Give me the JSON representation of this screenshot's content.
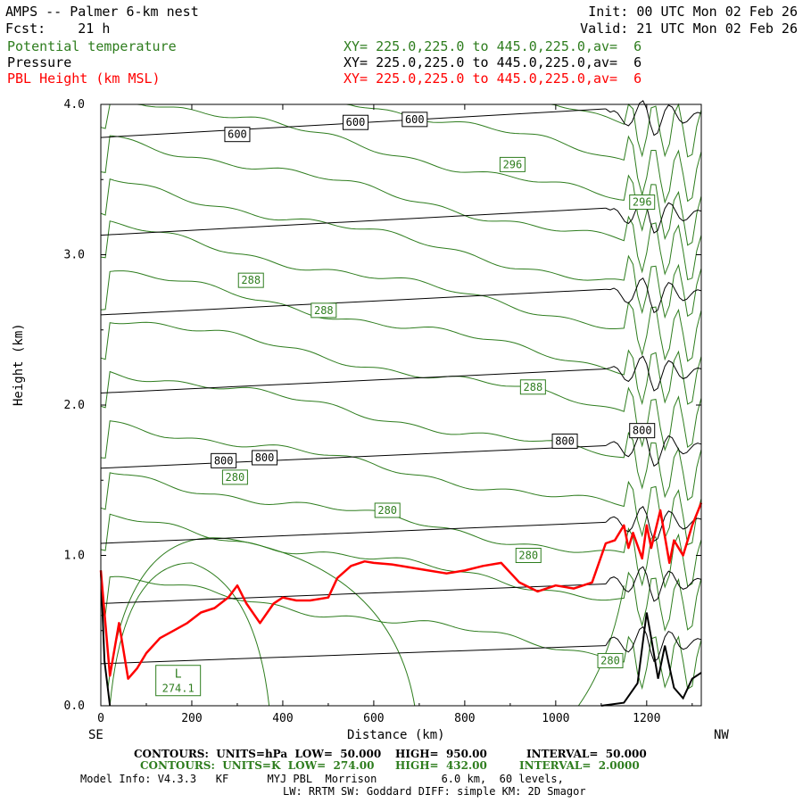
{
  "header": {
    "title": "AMPS -- Palmer 6-km nest",
    "fcst": "Fcst:    21 h",
    "init": "Init: 00 UTC Mon 02 Feb 26",
    "valid": "Valid: 21 UTC Mon 02 Feb 26",
    "field1": "Potential temperature",
    "field2": "Pressure",
    "field3": "PBL Height (km MSL)",
    "xy1": "XY= 225.0,225.0 to 445.0,225.0,av=  6",
    "xy2": "XY= 225.0,225.0 to 445.0,225.0,av=  6",
    "xy3": "XY= 225.0,225.0 to 445.0,225.0,av=  6"
  },
  "colors": {
    "theta": "#2e7d1e",
    "pressure": "#000000",
    "pbl": "#ff0000"
  },
  "footer": {
    "line1_a": "CONTOURS:  UNITS=hPa  LOW=  50.000",
    "line1_b": "HIGH=  950.00",
    "line1_c": "INTERVAL=  50.000",
    "line2_a": "CONTOURS:  UNITS=K  LOW=  274.00",
    "line2_b": "HIGH=  432.00",
    "line2_c": "INTERVAL=  2.0000",
    "line3": "Model Info: V4.3.3   KF      MYJ PBL  Morrison          6.0 km,  60 levels,",
    "line4": "LW: RRTM SW: Goddard DIFF: simple KM: 2D Smagor"
  },
  "chart_data": {
    "type": "line",
    "xlabel": "Distance (km)",
    "ylabel": "Height (km)",
    "xlim": [
      0,
      1320
    ],
    "ylim": [
      0,
      4.0
    ],
    "x_ticks": [
      "0",
      "200",
      "400",
      "600",
      "800",
      "1000",
      "1200"
    ],
    "y_ticks": [
      "0.0",
      "1.0",
      "2.0",
      "3.0",
      "4.0"
    ],
    "left_end_label": "SE",
    "right_end_label": "NW",
    "grid": false,
    "pbl_height": {
      "name": "PBL Height (km MSL)",
      "x": [
        0,
        20,
        40,
        60,
        80,
        100,
        130,
        160,
        190,
        220,
        250,
        280,
        300,
        320,
        350,
        380,
        400,
        430,
        460,
        500,
        520,
        550,
        580,
        600,
        640,
        680,
        720,
        760,
        800,
        840,
        880,
        920,
        960,
        1000,
        1040,
        1080,
        1110,
        1130,
        1150,
        1160,
        1170,
        1190,
        1200,
        1210,
        1230,
        1250,
        1260,
        1280,
        1300,
        1320
      ],
      "y": [
        0.9,
        0.2,
        0.55,
        0.18,
        0.25,
        0.35,
        0.45,
        0.5,
        0.55,
        0.62,
        0.65,
        0.72,
        0.8,
        0.68,
        0.55,
        0.68,
        0.72,
        0.7,
        0.7,
        0.72,
        0.85,
        0.93,
        0.96,
        0.95,
        0.94,
        0.92,
        0.9,
        0.88,
        0.9,
        0.93,
        0.95,
        0.82,
        0.76,
        0.8,
        0.78,
        0.82,
        1.08,
        1.1,
        1.2,
        1.05,
        1.15,
        0.98,
        1.2,
        1.05,
        1.3,
        0.95,
        1.1,
        1.0,
        1.2,
        1.35
      ]
    },
    "pressure_labels": [
      {
        "text": "600",
        "x": 300,
        "y": 3.8
      },
      {
        "text": "600",
        "x": 560,
        "y": 3.88
      },
      {
        "text": "600",
        "x": 690,
        "y": 3.9
      },
      {
        "text": "800",
        "x": 270,
        "y": 1.63
      },
      {
        "text": "800",
        "x": 360,
        "y": 1.65
      },
      {
        "text": "800",
        "x": 1020,
        "y": 1.76
      },
      {
        "text": "800",
        "x": 1190,
        "y": 1.83
      }
    ],
    "theta_labels": [
      {
        "text": "296",
        "x": 905,
        "y": 3.6
      },
      {
        "text": "296",
        "x": 1190,
        "y": 3.35
      },
      {
        "text": "288",
        "x": 330,
        "y": 2.83
      },
      {
        "text": "288",
        "x": 490,
        "y": 2.63
      },
      {
        "text": "288",
        "x": 950,
        "y": 2.12
      },
      {
        "text": "280",
        "x": 295,
        "y": 1.52
      },
      {
        "text": "280",
        "x": 630,
        "y": 1.3
      },
      {
        "text": "280",
        "x": 940,
        "y": 1.0
      },
      {
        "text": "280",
        "x": 1120,
        "y": 0.3
      }
    ],
    "low_marker": {
      "letter": "L",
      "value": "274.1",
      "x": 170,
      "y": 0.15
    }
  }
}
